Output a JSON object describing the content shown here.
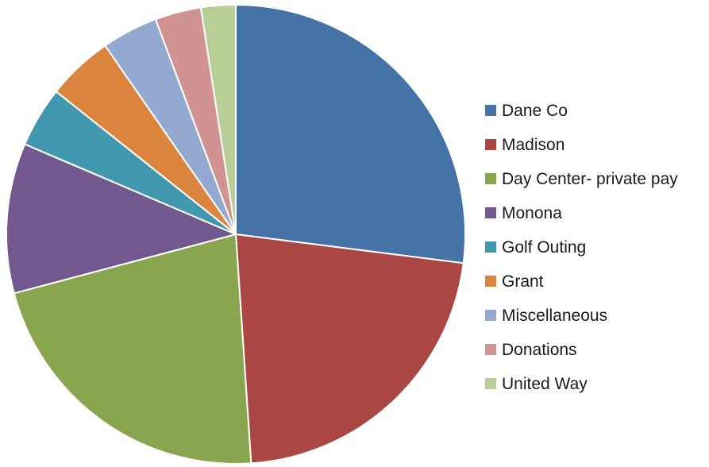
{
  "chart_data": {
    "type": "pie",
    "title": "",
    "categories": [
      "Dane Co",
      "Madison",
      "Day Center- private pay",
      "Monona",
      "Golf Outing",
      "Grant",
      "Miscellaneous",
      "Donations",
      "United Way"
    ],
    "values": [
      26.6,
      21.6,
      21.6,
      10.4,
      4.2,
      4.6,
      3.9,
      3.2,
      2.4
    ],
    "colors": [
      "#4572a7",
      "#aa4643",
      "#89a54e",
      "#71588f",
      "#4198af",
      "#db843d",
      "#93a9cf",
      "#d19392",
      "#b9cd96"
    ],
    "start_angle": "12 o'clock",
    "direction": "clockwise",
    "legend_position": "right"
  }
}
